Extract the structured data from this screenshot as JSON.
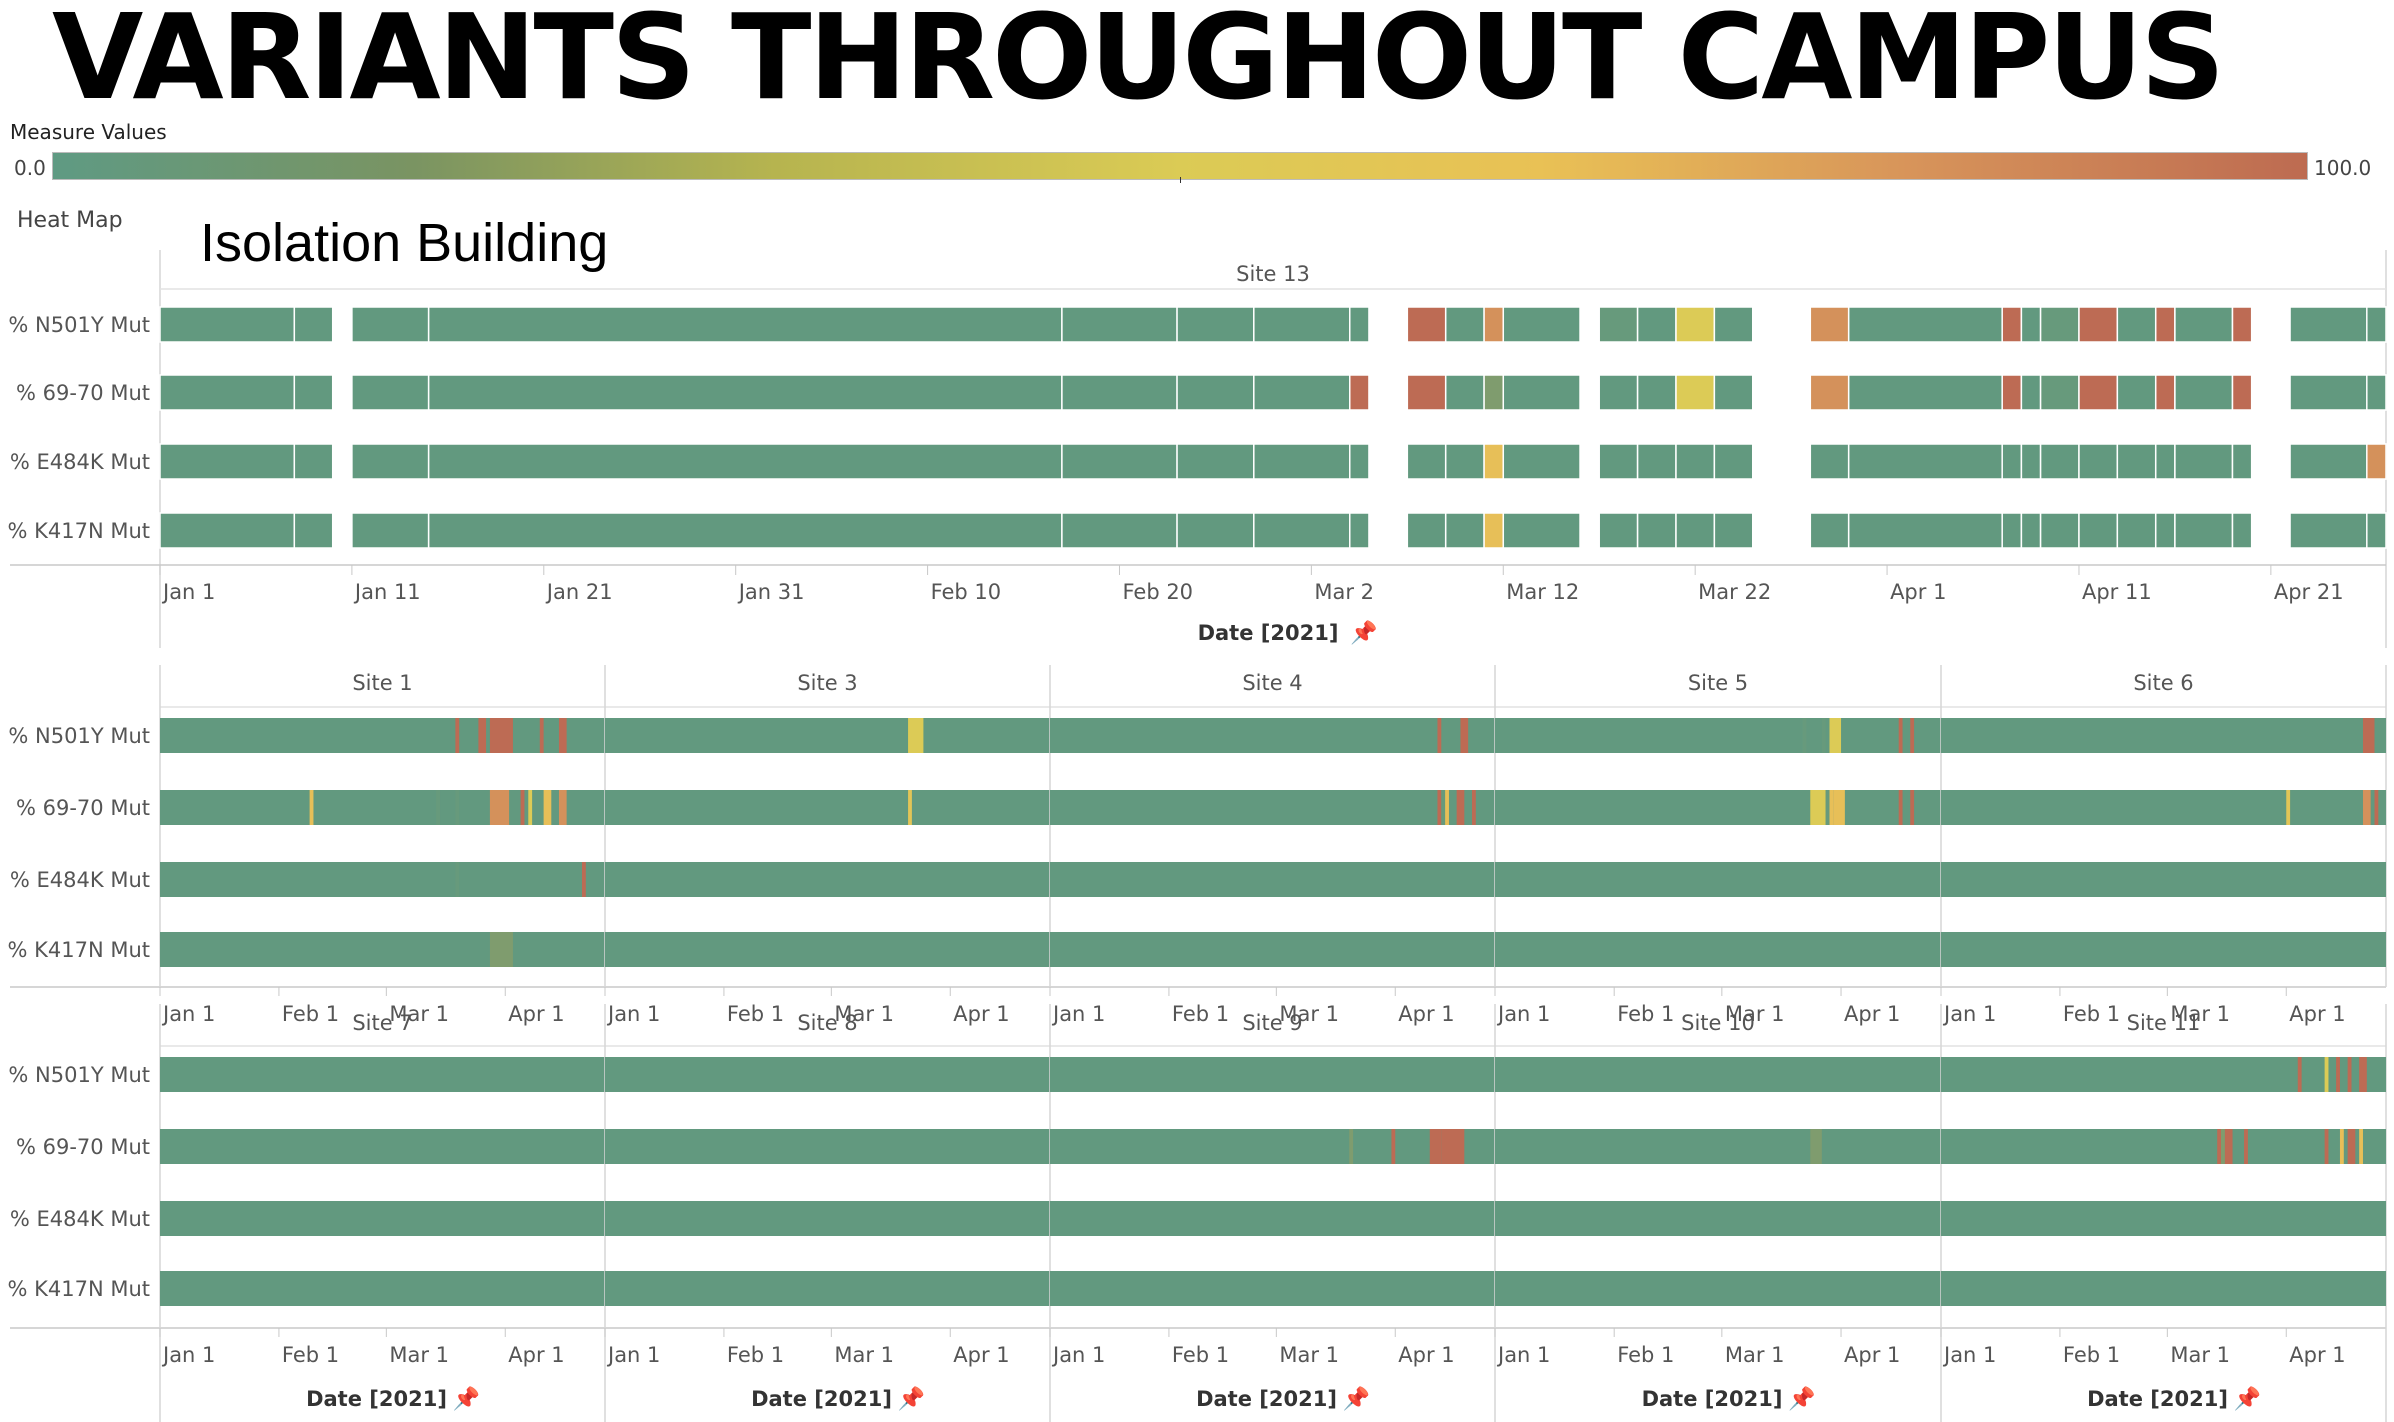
{
  "title": "VARIANTS THROUGHOUT CAMPUS",
  "legend": {
    "title": "Measure Values",
    "min_label": "0.0",
    "max_label": "100.0",
    "min": 0,
    "max": 100
  },
  "heat_map_label": "Heat Map",
  "isolation_label": "Isolation Building",
  "colors": {
    "base": "#62997f",
    "olive": "#7f9c6e",
    "yellow": "#dccb56",
    "amber": "#e7bf58",
    "orange": "#d4915b",
    "red": "#bd6b54"
  },
  "date_axis_title": "Date [2021]",
  "chart_data": [
    {
      "type": "heatmap",
      "title": "Site 13",
      "rows": [
        "% N501Y Mut",
        "% 69-70 Mut",
        "% E484K Mut",
        "% K417N Mut"
      ],
      "x_ticks": [
        "Jan 1",
        "Jan 11",
        "Jan 21",
        "Jan 31",
        "Feb 10",
        "Feb 20",
        "Mar 2",
        "Mar 12",
        "Mar 22",
        "Apr 1",
        "Apr 11",
        "Apr 21"
      ],
      "x_start": "2021-01-01",
      "x_end": "2021-04-27",
      "segments": [
        {
          "start": "2021-01-01",
          "end": "2021-01-08",
          "values": [
            0,
            0,
            0,
            0
          ]
        },
        {
          "start": "2021-01-08",
          "end": "2021-01-10",
          "values": [
            0,
            0,
            0,
            0
          ]
        },
        {
          "start": "2021-01-11",
          "end": "2021-01-15",
          "values": [
            0,
            0,
            0,
            0
          ]
        },
        {
          "start": "2021-01-15",
          "end": "2021-02-17",
          "values": [
            0,
            0,
            0,
            0
          ]
        },
        {
          "start": "2021-02-17",
          "end": "2021-02-23",
          "values": [
            0,
            0,
            0,
            0
          ]
        },
        {
          "start": "2021-02-23",
          "end": "2021-02-27",
          "values": [
            0,
            0,
            0,
            0
          ]
        },
        {
          "start": "2021-02-27",
          "end": "2021-03-05",
          "values": [
            0,
            0,
            0,
            0
          ]
        },
        {
          "start": "2021-03-04",
          "end": "2021-03-05",
          "values": [
            0,
            100,
            0,
            0
          ]
        },
        {
          "start": "2021-03-07",
          "end": "2021-03-09",
          "values": [
            100,
            100,
            0,
            0
          ]
        },
        {
          "start": "2021-03-09",
          "end": "2021-03-11",
          "values": [
            0,
            0,
            0,
            0
          ]
        },
        {
          "start": "2021-03-11",
          "end": "2021-03-12",
          "values": [
            80,
            20,
            60,
            60
          ]
        },
        {
          "start": "2021-03-12",
          "end": "2021-03-16",
          "values": [
            0,
            0,
            0,
            0
          ]
        },
        {
          "start": "2021-03-17",
          "end": "2021-03-19",
          "values": [
            10,
            0,
            0,
            0
          ]
        },
        {
          "start": "2021-03-19",
          "end": "2021-03-21",
          "values": [
            0,
            0,
            0,
            0
          ]
        },
        {
          "start": "2021-03-21",
          "end": "2021-03-23",
          "values": [
            50,
            50,
            0,
            0
          ]
        },
        {
          "start": "2021-03-23",
          "end": "2021-03-25",
          "values": [
            0,
            0,
            0,
            0
          ]
        },
        {
          "start": "2021-03-28",
          "end": "2021-03-30",
          "values": [
            80,
            80,
            0,
            0
          ]
        },
        {
          "start": "2021-03-30",
          "end": "2021-04-07",
          "values": [
            0,
            0,
            0,
            0
          ]
        },
        {
          "start": "2021-04-07",
          "end": "2021-04-08",
          "values": [
            100,
            100,
            0,
            0
          ]
        },
        {
          "start": "2021-04-08",
          "end": "2021-04-09",
          "values": [
            0,
            0,
            0,
            0
          ]
        },
        {
          "start": "2021-04-09",
          "end": "2021-04-11",
          "values": [
            10,
            10,
            0,
            0
          ]
        },
        {
          "start": "2021-04-11",
          "end": "2021-04-13",
          "values": [
            100,
            100,
            0,
            0
          ]
        },
        {
          "start": "2021-04-13",
          "end": "2021-04-15",
          "values": [
            0,
            0,
            0,
            0
          ]
        },
        {
          "start": "2021-04-15",
          "end": "2021-04-16",
          "values": [
            100,
            100,
            0,
            0
          ]
        },
        {
          "start": "2021-04-16",
          "end": "2021-04-19",
          "values": [
            0,
            0,
            0,
            0
          ]
        },
        {
          "start": "2021-04-19",
          "end": "2021-04-20",
          "values": [
            100,
            100,
            0,
            0
          ]
        },
        {
          "start": "2021-04-22",
          "end": "2021-04-27",
          "values": [
            0,
            0,
            0,
            0
          ]
        },
        {
          "start": "2021-04-26",
          "end": "2021-04-27",
          "values": [
            0,
            0,
            80,
            0
          ]
        }
      ]
    },
    {
      "type": "heatmap",
      "title": "Site 1",
      "x_ticks": [
        "Jan 1",
        "Feb 1",
        "Mar 1",
        "Apr 1"
      ],
      "x_start": "2021-01-01",
      "x_end": "2021-04-27",
      "marks": [
        {
          "row": 0,
          "start": "2021-03-19",
          "end": "2021-03-20",
          "value": 100
        },
        {
          "row": 0,
          "start": "2021-03-25",
          "end": "2021-03-27",
          "value": 100
        },
        {
          "row": 0,
          "start": "2021-03-28",
          "end": "2021-04-03",
          "value": 100
        },
        {
          "row": 0,
          "start": "2021-04-10",
          "end": "2021-04-11",
          "value": 100
        },
        {
          "row": 0,
          "start": "2021-04-15",
          "end": "2021-04-17",
          "value": 100
        },
        {
          "row": 1,
          "start": "2021-02-09",
          "end": "2021-02-10",
          "value": 60
        },
        {
          "row": 1,
          "start": "2021-03-14",
          "end": "2021-03-15",
          "value": 10
        },
        {
          "row": 1,
          "start": "2021-03-19",
          "end": "2021-03-20",
          "value": 10
        },
        {
          "row": 1,
          "start": "2021-03-28",
          "end": "2021-04-02",
          "value": 80
        },
        {
          "row": 1,
          "start": "2021-04-05",
          "end": "2021-04-06",
          "value": 100
        },
        {
          "row": 1,
          "start": "2021-04-07",
          "end": "2021-04-08",
          "value": 50
        },
        {
          "row": 1,
          "start": "2021-04-11",
          "end": "2021-04-13",
          "value": 60
        },
        {
          "row": 1,
          "start": "2021-04-15",
          "end": "2021-04-17",
          "value": 80
        },
        {
          "row": 2,
          "start": "2021-03-19",
          "end": "2021-03-20",
          "value": 10
        },
        {
          "row": 2,
          "start": "2021-04-21",
          "end": "2021-04-22",
          "value": 100
        },
        {
          "row": 3,
          "start": "2021-03-28",
          "end": "2021-04-03",
          "value": 20
        }
      ]
    },
    {
      "type": "heatmap",
      "title": "Site 3",
      "x_ticks": [
        "Jan 1",
        "Feb 1",
        "Mar 1",
        "Apr 1"
      ],
      "x_start": "2021-01-01",
      "x_end": "2021-04-27",
      "marks": [
        {
          "row": 0,
          "start": "2021-03-21",
          "end": "2021-03-25",
          "value": 50
        },
        {
          "row": 1,
          "start": "2021-03-21",
          "end": "2021-03-22",
          "value": 55
        }
      ]
    },
    {
      "type": "heatmap",
      "title": "Site 4",
      "x_ticks": [
        "Jan 1",
        "Feb 1",
        "Mar 1",
        "Apr 1"
      ],
      "x_start": "2021-01-01",
      "x_end": "2021-04-27",
      "marks": [
        {
          "row": 0,
          "start": "2021-04-12",
          "end": "2021-04-13",
          "value": 100
        },
        {
          "row": 0,
          "start": "2021-04-18",
          "end": "2021-04-20",
          "value": 100
        },
        {
          "row": 1,
          "start": "2021-04-12",
          "end": "2021-04-13",
          "value": 100
        },
        {
          "row": 1,
          "start": "2021-04-13",
          "end": "2021-04-14",
          "value": 10
        },
        {
          "row": 1,
          "start": "2021-04-14",
          "end": "2021-04-15",
          "value": 60
        },
        {
          "row": 1,
          "start": "2021-04-17",
          "end": "2021-04-19",
          "value": 100
        },
        {
          "row": 1,
          "start": "2021-04-21",
          "end": "2021-04-22",
          "value": 100
        }
      ]
    },
    {
      "type": "heatmap",
      "title": "Site 5",
      "x_ticks": [
        "Jan 1",
        "Feb 1",
        "Mar 1",
        "Apr 1"
      ],
      "x_start": "2021-01-01",
      "x_end": "2021-04-27",
      "marks": [
        {
          "row": 0,
          "start": "2021-03-22",
          "end": "2021-03-23",
          "value": 10
        },
        {
          "row": 0,
          "start": "2021-03-27",
          "end": "2021-03-28",
          "value": 10
        },
        {
          "row": 0,
          "start": "2021-03-29",
          "end": "2021-04-01",
          "value": 50
        },
        {
          "row": 0,
          "start": "2021-04-16",
          "end": "2021-04-17",
          "value": 100
        },
        {
          "row": 0,
          "start": "2021-04-19",
          "end": "2021-04-20",
          "value": 100
        },
        {
          "row": 1,
          "start": "2021-03-24",
          "end": "2021-03-28",
          "value": 50
        },
        {
          "row": 1,
          "start": "2021-03-28",
          "end": "2021-03-29",
          "value": 10
        },
        {
          "row": 1,
          "start": "2021-03-29",
          "end": "2021-03-30",
          "value": 60
        },
        {
          "row": 1,
          "start": "2021-03-30",
          "end": "2021-04-02",
          "value": 60
        },
        {
          "row": 1,
          "start": "2021-04-16",
          "end": "2021-04-17",
          "value": 100
        },
        {
          "row": 1,
          "start": "2021-04-19",
          "end": "2021-04-20",
          "value": 100
        }
      ]
    },
    {
      "type": "heatmap",
      "title": "Site 6",
      "x_ticks": [
        "Jan 1",
        "Feb 1",
        "Mar 1",
        "Apr 1"
      ],
      "x_start": "2021-01-01",
      "x_end": "2021-04-27",
      "marks": [
        {
          "row": 0,
          "start": "2021-04-21",
          "end": "2021-04-24",
          "value": 100
        },
        {
          "row": 1,
          "start": "2021-04-01",
          "end": "2021-04-02",
          "value": 55
        },
        {
          "row": 1,
          "start": "2021-04-21",
          "end": "2021-04-23",
          "value": 80
        },
        {
          "row": 1,
          "start": "2021-04-24",
          "end": "2021-04-25",
          "value": 100
        }
      ]
    },
    {
      "type": "heatmap",
      "title": "Site 7",
      "x_ticks": [
        "Jan 1",
        "Feb 1",
        "Mar 1",
        "Apr 1"
      ],
      "x_start": "2021-01-01",
      "x_end": "2021-04-27",
      "marks": []
    },
    {
      "type": "heatmap",
      "title": "Site 8",
      "x_ticks": [
        "Jan 1",
        "Feb 1",
        "Mar 1",
        "Apr 1"
      ],
      "x_start": "2021-01-01",
      "x_end": "2021-04-27",
      "marks": []
    },
    {
      "type": "heatmap",
      "title": "Site 9",
      "x_ticks": [
        "Jan 1",
        "Feb 1",
        "Mar 1",
        "Apr 1"
      ],
      "x_start": "2021-01-01",
      "x_end": "2021-04-27",
      "marks": [
        {
          "row": 1,
          "start": "2021-03-20",
          "end": "2021-03-21",
          "value": 20
        },
        {
          "row": 1,
          "start": "2021-03-31",
          "end": "2021-04-01",
          "value": 100
        },
        {
          "row": 1,
          "start": "2021-04-10",
          "end": "2021-04-13",
          "value": 100
        },
        {
          "row": 1,
          "start": "2021-04-13",
          "end": "2021-04-19",
          "value": 100
        }
      ]
    },
    {
      "type": "heatmap",
      "title": "Site 10",
      "x_ticks": [
        "Jan 1",
        "Feb 1",
        "Mar 1",
        "Apr 1"
      ],
      "x_start": "2021-01-01",
      "x_end": "2021-04-27",
      "marks": [
        {
          "row": 1,
          "start": "2021-03-24",
          "end": "2021-03-27",
          "value": 20
        }
      ]
    },
    {
      "type": "heatmap",
      "title": "Site 11",
      "x_ticks": [
        "Jan 1",
        "Feb 1",
        "Mar 1",
        "Apr 1"
      ],
      "x_start": "2021-01-01",
      "x_end": "2021-04-27",
      "marks": [
        {
          "row": 0,
          "start": "2021-04-04",
          "end": "2021-04-05",
          "value": 100
        },
        {
          "row": 0,
          "start": "2021-04-11",
          "end": "2021-04-12",
          "value": 50
        },
        {
          "row": 0,
          "start": "2021-04-14",
          "end": "2021-04-15",
          "value": 100
        },
        {
          "row": 0,
          "start": "2021-04-17",
          "end": "2021-04-18",
          "value": 100
        },
        {
          "row": 0,
          "start": "2021-04-20",
          "end": "2021-04-22",
          "value": 100
        },
        {
          "row": 1,
          "start": "2021-03-14",
          "end": "2021-03-15",
          "value": 100
        },
        {
          "row": 1,
          "start": "2021-03-15",
          "end": "2021-03-16",
          "value": 20
        },
        {
          "row": 1,
          "start": "2021-03-16",
          "end": "2021-03-18",
          "value": 100
        },
        {
          "row": 1,
          "start": "2021-03-21",
          "end": "2021-03-22",
          "value": 100
        },
        {
          "row": 1,
          "start": "2021-04-11",
          "end": "2021-04-12",
          "value": 100
        },
        {
          "row": 1,
          "start": "2021-04-15",
          "end": "2021-04-16",
          "value": 60
        },
        {
          "row": 1,
          "start": "2021-04-17",
          "end": "2021-04-19",
          "value": 100
        },
        {
          "row": 1,
          "start": "2021-04-20",
          "end": "2021-04-21",
          "value": 60
        }
      ]
    }
  ]
}
